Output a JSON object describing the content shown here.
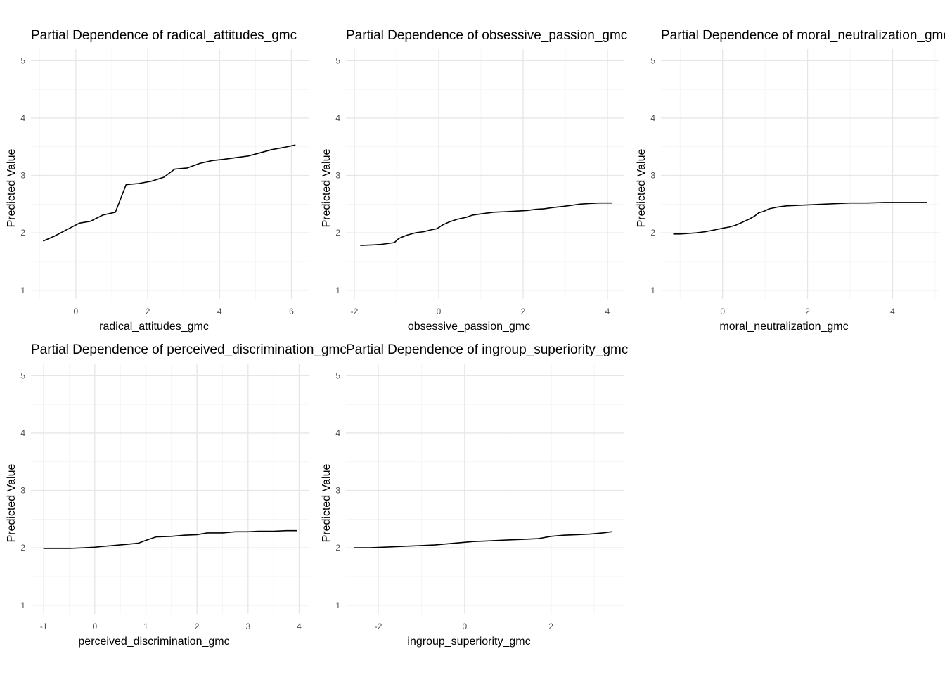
{
  "chart_data": [
    {
      "type": "line",
      "title": "Partial Dependence of radical_attitudes_gmc",
      "xlabel": "radical_attitudes_gmc",
      "ylabel": "Predicted Value",
      "xlim": [
        -1.25,
        6.5
      ],
      "ylim": [
        0.85,
        5.2
      ],
      "xticks": [
        0,
        2,
        4,
        6
      ],
      "xtick_labels": [
        "0",
        "2",
        "4",
        "6"
      ],
      "yticks": [
        1,
        2,
        3,
        4,
        5
      ],
      "ytick_labels": [
        "1",
        "2",
        "3",
        "4",
        "5"
      ],
      "grid": true,
      "x": [
        -0.9,
        -0.6,
        -0.3,
        0.1,
        0.4,
        0.75,
        1.1,
        1.4,
        1.75,
        2.1,
        2.45,
        2.75,
        3.1,
        3.45,
        3.8,
        4.1,
        4.45,
        4.8,
        5.1,
        5.45,
        5.8,
        6.1
      ],
      "y": [
        1.86,
        1.94,
        2.04,
        2.17,
        2.2,
        2.31,
        2.36,
        2.84,
        2.86,
        2.9,
        2.97,
        3.11,
        3.13,
        3.21,
        3.26,
        3.28,
        3.31,
        3.34,
        3.39,
        3.45,
        3.49,
        3.53
      ]
    },
    {
      "type": "line",
      "title": "Partial Dependence of obsessive_passion_gmc",
      "xlabel": "obsessive_passion_gmc",
      "ylabel": "Predicted Value",
      "xlim": [
        -2.2,
        4.4
      ],
      "ylim": [
        0.85,
        5.2
      ],
      "xticks": [
        -2,
        0,
        2,
        4
      ],
      "xtick_labels": [
        "-2",
        "0",
        "2",
        "4"
      ],
      "yticks": [
        1,
        2,
        3,
        4,
        5
      ],
      "ytick_labels": [
        "1",
        "2",
        "3",
        "4",
        "5"
      ],
      "grid": true,
      "x": [
        -1.85,
        -1.55,
        -1.35,
        -1.05,
        -0.95,
        -0.75,
        -0.55,
        -0.35,
        -0.2,
        -0.05,
        0.1,
        0.25,
        0.45,
        0.65,
        0.8,
        1.0,
        1.3,
        1.6,
        1.9,
        2.1,
        2.3,
        2.5,
        2.7,
        2.95,
        3.15,
        3.35,
        3.55,
        3.8,
        4.1
      ],
      "y": [
        1.78,
        1.79,
        1.8,
        1.83,
        1.9,
        1.96,
        2.0,
        2.02,
        2.05,
        2.07,
        2.14,
        2.19,
        2.24,
        2.27,
        2.31,
        2.33,
        2.36,
        2.37,
        2.38,
        2.39,
        2.41,
        2.42,
        2.44,
        2.46,
        2.48,
        2.5,
        2.51,
        2.52,
        2.52
      ]
    },
    {
      "type": "line",
      "title": "Partial Dependence of moral_neutralization_gmc",
      "xlabel": "moral_neutralization_gmc",
      "ylabel": "Predicted Value",
      "xlim": [
        -1.45,
        5.1
      ],
      "ylim": [
        0.85,
        5.2
      ],
      "xticks": [
        0,
        2,
        4
      ],
      "xtick_labels": [
        "0",
        "2",
        "4"
      ],
      "yticks": [
        1,
        2,
        3,
        4,
        5
      ],
      "ytick_labels": [
        "1",
        "2",
        "3",
        "4",
        "5"
      ],
      "grid": true,
      "x": [
        -1.15,
        -1.0,
        -0.8,
        -0.6,
        -0.4,
        -0.2,
        0.0,
        0.15,
        0.3,
        0.45,
        0.6,
        0.75,
        0.85,
        0.95,
        1.1,
        1.3,
        1.5,
        1.8,
        2.1,
        2.4,
        2.7,
        3.0,
        3.4,
        3.8,
        4.2,
        4.5,
        4.8
      ],
      "y": [
        1.98,
        1.98,
        1.99,
        2.0,
        2.02,
        2.05,
        2.08,
        2.1,
        2.13,
        2.18,
        2.23,
        2.29,
        2.35,
        2.37,
        2.42,
        2.45,
        2.47,
        2.48,
        2.49,
        2.5,
        2.51,
        2.52,
        2.52,
        2.53,
        2.53,
        2.53,
        2.53
      ]
    },
    {
      "type": "line",
      "title": "Partial Dependence of perceived_discrimination_gmc",
      "xlabel": "perceived_discrimination_gmc",
      "ylabel": "Predicted Value",
      "xlim": [
        -1.25,
        4.2
      ],
      "ylim": [
        0.85,
        5.2
      ],
      "xticks": [
        -1,
        0,
        1,
        2,
        3,
        4
      ],
      "xtick_labels": [
        "-1",
        "0",
        "1",
        "2",
        "3",
        "4"
      ],
      "yticks": [
        1,
        2,
        3,
        4,
        5
      ],
      "ytick_labels": [
        "1",
        "2",
        "3",
        "4",
        "5"
      ],
      "grid": true,
      "x": [
        -1.0,
        -0.8,
        -0.5,
        -0.2,
        0.0,
        0.1,
        0.35,
        0.6,
        0.85,
        1.0,
        1.2,
        1.5,
        1.75,
        2.0,
        2.2,
        2.5,
        2.75,
        3.0,
        3.2,
        3.5,
        3.75,
        3.95
      ],
      "y": [
        1.99,
        1.99,
        1.99,
        2.0,
        2.01,
        2.02,
        2.04,
        2.06,
        2.08,
        2.13,
        2.19,
        2.2,
        2.22,
        2.23,
        2.26,
        2.26,
        2.28,
        2.28,
        2.29,
        2.29,
        2.3,
        2.3
      ]
    },
    {
      "type": "line",
      "title": "Partial Dependence of ingroup_superiority_gmc",
      "xlabel": "ingroup_superiority_gmc",
      "ylabel": "Predicted Value",
      "xlim": [
        -2.75,
        3.7
      ],
      "ylim": [
        0.85,
        5.2
      ],
      "xticks": [
        -2,
        0,
        2
      ],
      "xtick_labels": [
        "-2",
        "0",
        "2"
      ],
      "yticks": [
        1,
        2,
        3,
        4,
        5
      ],
      "ytick_labels": [
        "1",
        "2",
        "3",
        "4",
        "5"
      ],
      "grid": true,
      "x": [
        -2.55,
        -2.2,
        -1.9,
        -1.6,
        -1.3,
        -1.0,
        -0.7,
        -0.4,
        -0.1,
        0.2,
        0.5,
        0.8,
        1.1,
        1.4,
        1.7,
        2.0,
        2.3,
        2.6,
        2.9,
        3.2,
        3.4
      ],
      "y": [
        2.0,
        2.0,
        2.01,
        2.02,
        2.03,
        2.04,
        2.05,
        2.07,
        2.09,
        2.11,
        2.12,
        2.13,
        2.14,
        2.15,
        2.16,
        2.2,
        2.22,
        2.23,
        2.24,
        2.26,
        2.28
      ]
    }
  ]
}
